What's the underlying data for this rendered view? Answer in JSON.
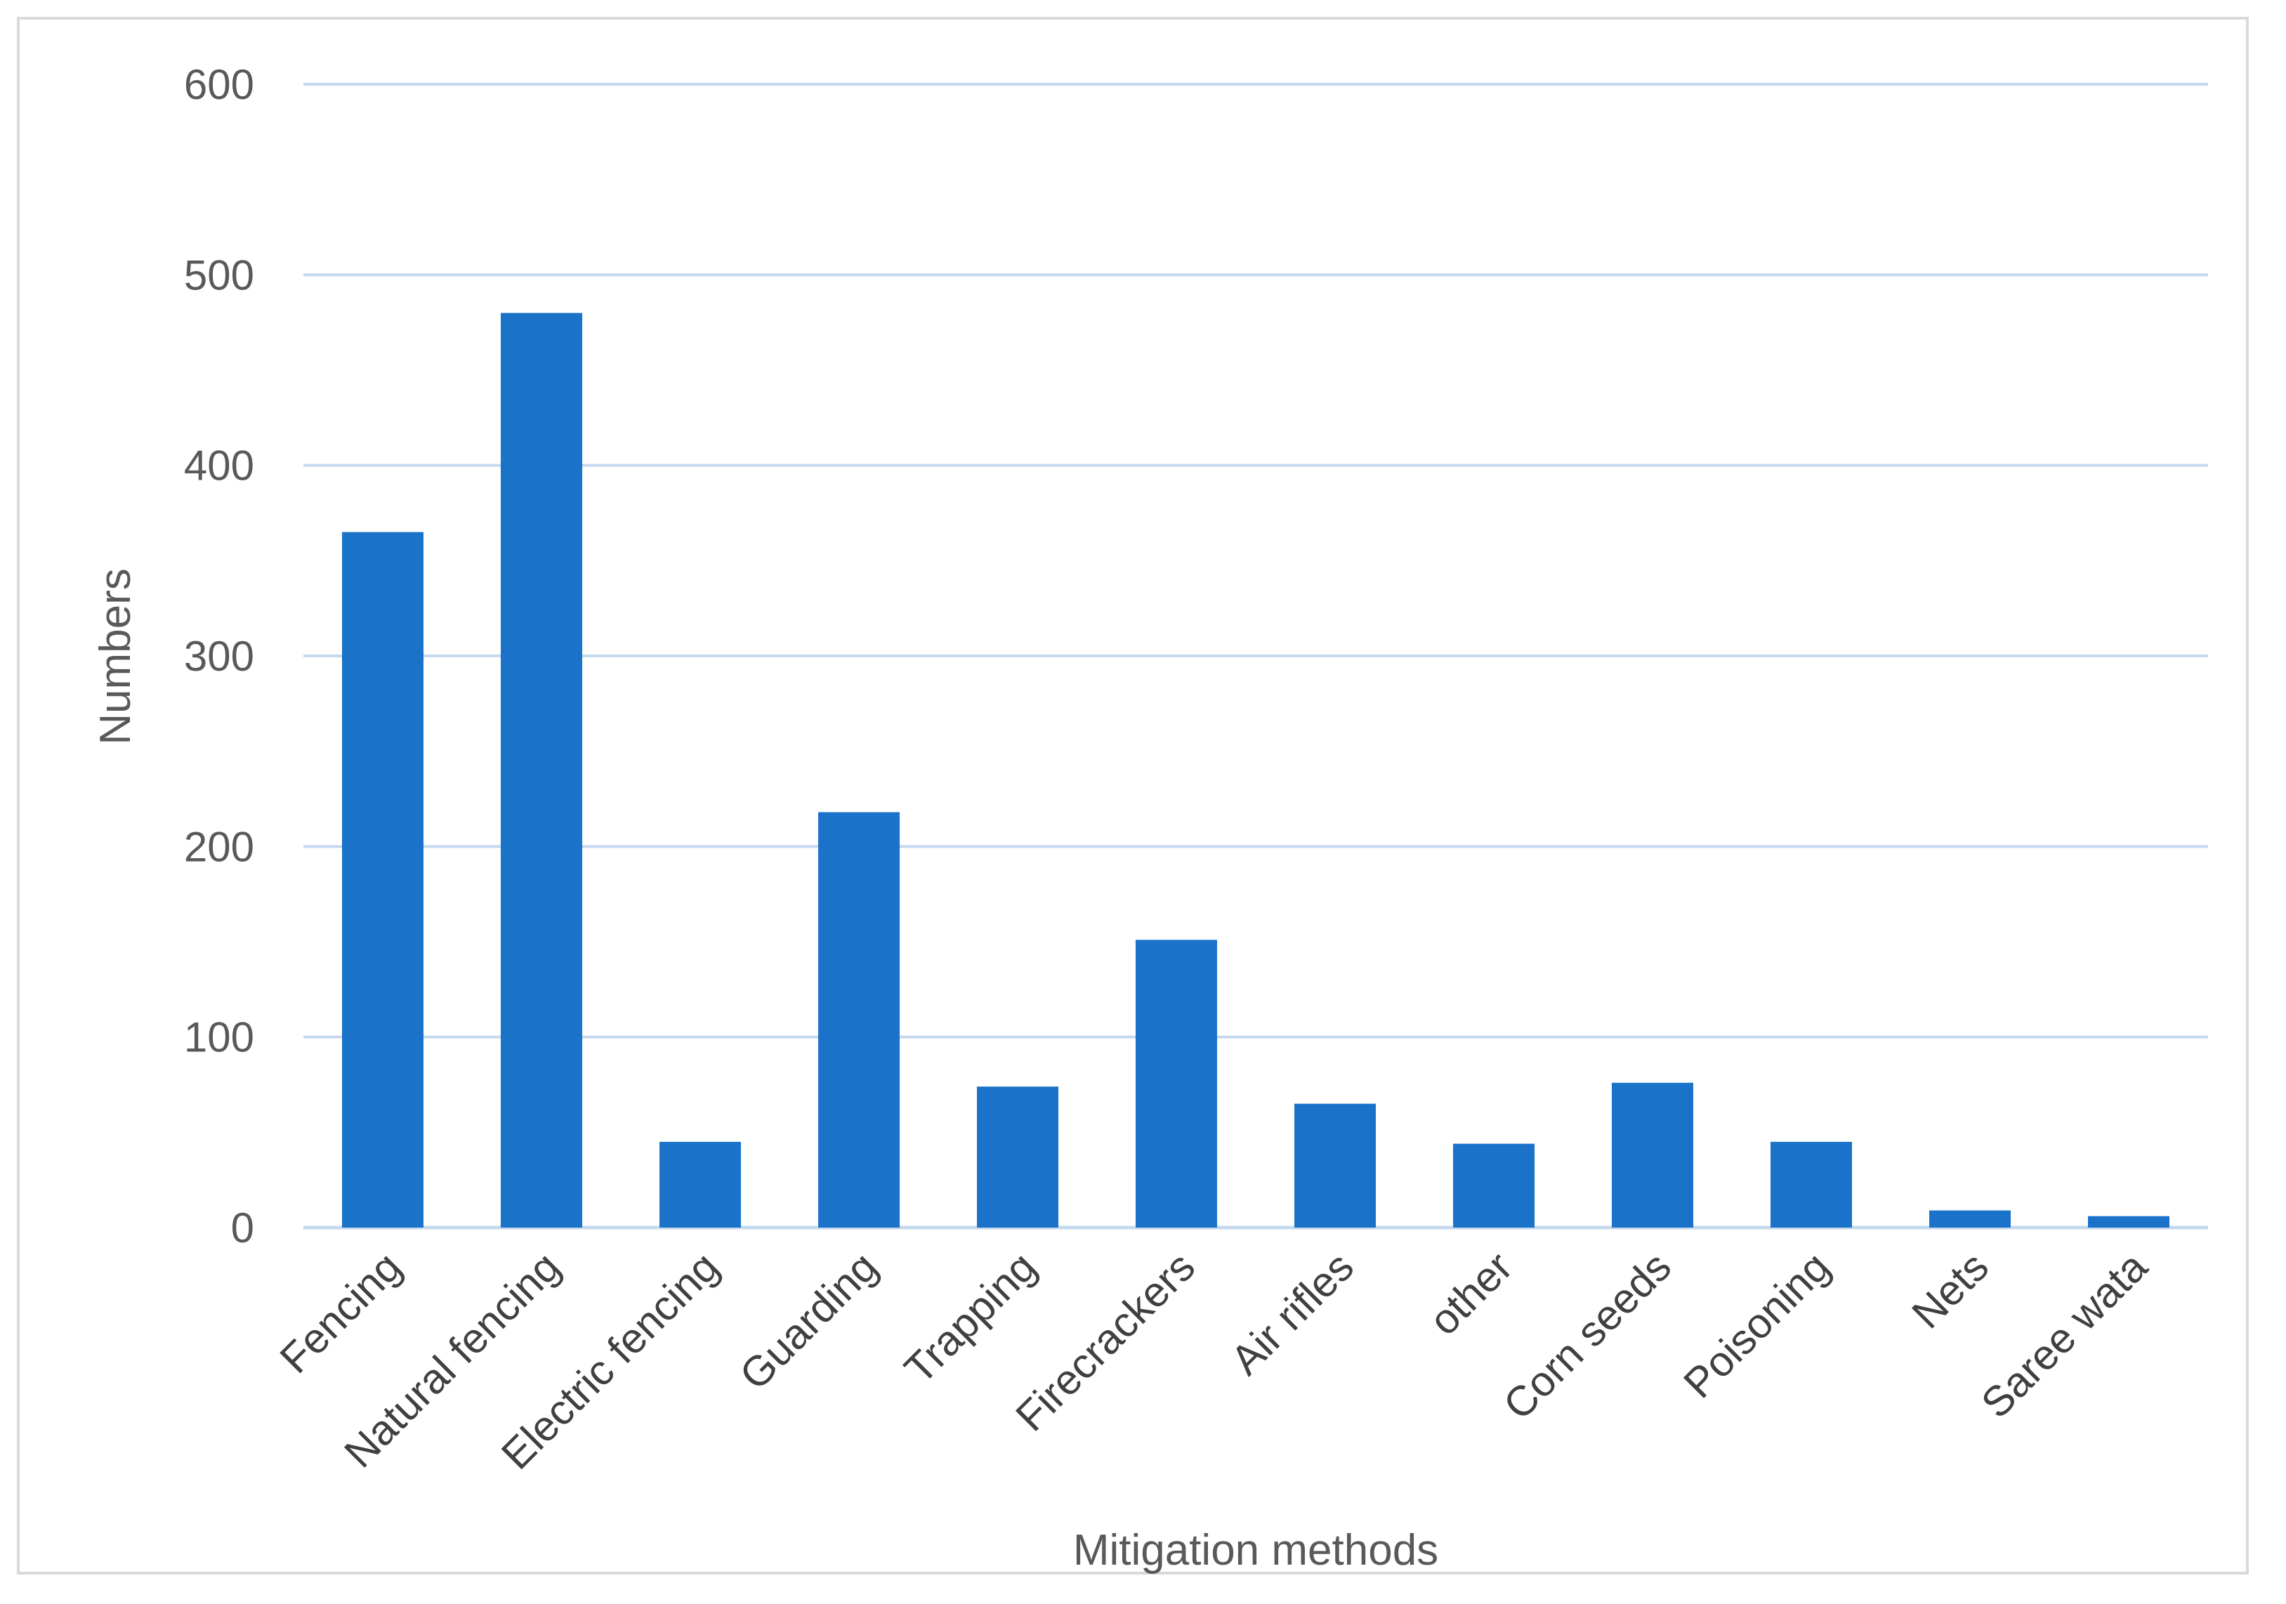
{
  "chart_data": {
    "type": "bar",
    "title": "",
    "xlabel": "Mitigation methods",
    "ylabel": "Numbers",
    "ylim": [
      0,
      600
    ],
    "yticks": [
      0,
      100,
      200,
      300,
      400,
      500,
      600
    ],
    "grid": true,
    "legend": "none",
    "categories": [
      "Fencing",
      "Natural fencing",
      "Electric fencing",
      "Guarding",
      "Trapping",
      "Firecrackers",
      "Air rifles",
      "other",
      "Corn seeds",
      "Poisoning",
      "Nets",
      "Saree wata"
    ],
    "values": [
      365,
      480,
      45,
      218,
      74,
      151,
      65,
      44,
      76,
      45,
      9,
      6
    ],
    "colors": {
      "bar": "#1a73c9",
      "grid": "#c5d9ee",
      "axis": "#c5d9ee"
    }
  }
}
